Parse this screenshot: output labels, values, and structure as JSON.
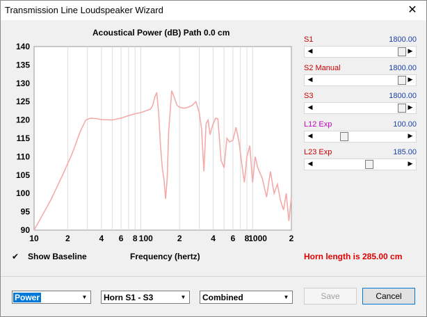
{
  "window": {
    "title": "Transmission Line Loudspeaker Wizard",
    "close_glyph": "✕"
  },
  "chart": {
    "title": "Acoustical Power (dB)   Path 0.0 cm",
    "xlabel": "Frequency (hertz)"
  },
  "chart_data": {
    "type": "line",
    "title": "Acoustical Power (dB)   Path 0.0 cm",
    "xlabel": "Frequency (hertz)",
    "ylabel": "",
    "xscale": "log",
    "xlim": [
      10,
      2000
    ],
    "ylim": [
      90,
      140
    ],
    "y_ticks": [
      90,
      95,
      100,
      105,
      110,
      115,
      120,
      125,
      130,
      135,
      140
    ],
    "x_tick_labels": [
      {
        "value": 10,
        "label": "10"
      },
      {
        "value": 20,
        "label": "2"
      },
      {
        "value": 40,
        "label": "4"
      },
      {
        "value": 60,
        "label": "6"
      },
      {
        "value": 80,
        "label": "8"
      },
      {
        "value": 100,
        "label": "100"
      },
      {
        "value": 200,
        "label": "2"
      },
      {
        "value": 400,
        "label": "4"
      },
      {
        "value": 600,
        "label": "6"
      },
      {
        "value": 800,
        "label": "8"
      },
      {
        "value": 1000,
        "label": "1000"
      },
      {
        "value": 2000,
        "label": "2"
      }
    ],
    "grid": true,
    "line_color": "#f4aaaa",
    "series": [
      {
        "x": [
          10,
          14,
          18,
          22,
          26,
          29,
          32,
          36,
          40,
          50,
          60,
          70,
          80,
          90,
          100,
          110,
          115,
          120,
          125,
          130,
          135,
          140,
          145,
          150,
          155,
          160,
          170,
          180,
          190,
          200,
          210,
          220,
          240,
          260,
          280,
          300,
          315,
          330,
          345,
          360,
          375,
          390,
          400,
          420,
          440,
          470,
          500,
          530,
          560,
          600,
          640,
          680,
          720,
          760,
          800,
          850,
          900,
          950,
          1000,
          1100,
          1200,
          1300,
          1400,
          1500,
          1600,
          1700,
          1800,
          1900,
          2000
        ],
        "y": [
          90,
          98,
          105,
          111,
          117,
          120,
          120.5,
          120.4,
          120.1,
          120,
          120.5,
          121.2,
          121.7,
          122,
          122.5,
          123,
          124,
          126.2,
          127.5,
          122,
          113,
          107,
          104,
          98.5,
          104,
          117,
          128,
          126,
          124,
          123.5,
          123.3,
          123.2,
          123.5,
          124,
          125,
          122,
          117.5,
          106,
          119,
          120,
          116,
          118,
          119,
          120.5,
          120.3,
          109,
          107,
          115,
          114,
          114.5,
          118,
          114,
          108,
          103,
          110,
          113,
          103,
          110,
          107,
          104,
          99,
          106,
          100,
          102.5,
          98,
          95.5,
          100,
          92.5,
          99
        ]
      }
    ]
  },
  "sliders": [
    {
      "label": "S1",
      "value": "1800.00",
      "position": 1.0,
      "label_color": "#c80000"
    },
    {
      "label": "S2  Manual",
      "value": "1800.00",
      "position": 1.0,
      "label_color": "#c80000"
    },
    {
      "label": "S3",
      "value": "1800.00",
      "position": 1.0,
      "label_color": "#c80000"
    },
    {
      "label": "L12  Exp",
      "value": "100.00",
      "position": 0.3,
      "label_color": "#c000c0"
    },
    {
      "label": "L23  Exp",
      "value": "185.00",
      "position": 0.6,
      "label_color": "#c80000"
    }
  ],
  "baseline": {
    "checked_glyph": "✔",
    "label": "Show Baseline"
  },
  "horn_text": "Horn length is 285.00 cm",
  "selects": [
    {
      "value": "Power"
    },
    {
      "value": "Horn S1 - S3"
    },
    {
      "value": "Combined"
    }
  ],
  "buttons": {
    "save": "Save",
    "cancel": "Cancel"
  },
  "colors": {
    "curve": "#f4aaaa",
    "horn_text": "#e00000",
    "value_text": "#1a40a8"
  }
}
